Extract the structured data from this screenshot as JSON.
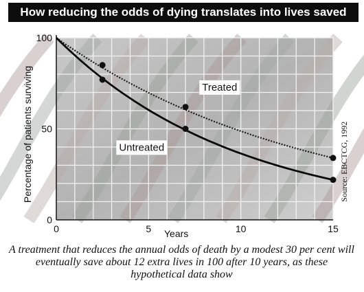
{
  "chart_data": {
    "type": "line",
    "title": "How reducing the odds of dying translates into lives saved",
    "xlabel": "Years",
    "ylabel": "Percentage of patients surviving",
    "xlim": [
      0,
      15
    ],
    "ylim": [
      0,
      100
    ],
    "xticks": [
      0,
      5,
      10,
      15
    ],
    "yticks": [
      0,
      50,
      100
    ],
    "grid": true,
    "series": [
      {
        "name": "Treated",
        "style": "dotted",
        "x": [
          0,
          2.5,
          7,
          15
        ],
        "y": [
          100,
          85,
          62,
          34
        ],
        "color": "#1a1a1a"
      },
      {
        "name": "Untreated",
        "style": "solid",
        "x": [
          0,
          2.5,
          7,
          15
        ],
        "y": [
          100,
          77,
          50,
          22
        ],
        "color": "#0a0a0a"
      }
    ],
    "source": "Source: EBCTCG, 1992"
  },
  "caption": "A treatment that reduces the annual odds of death by a modest 30 per cent will eventually save about 12 extra lives in 100 after 10 years, as these hypothetical data show"
}
